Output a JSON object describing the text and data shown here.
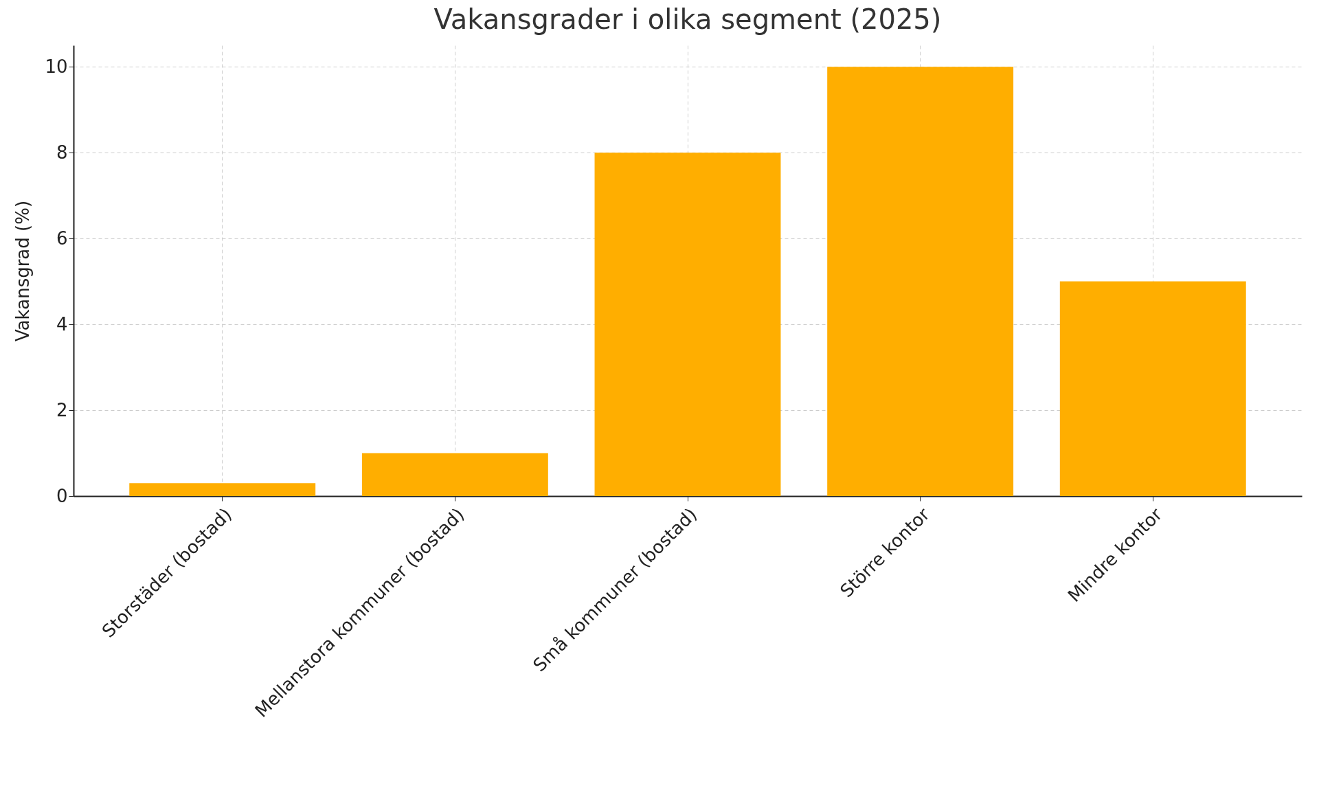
{
  "chart_data": {
    "type": "bar",
    "title": "Vakansgrader i olika segment (2025)",
    "ylabel": "Vakansgrad (%)",
    "categories": [
      "Storstäder (bostad)",
      "Mellanstora kommuner (bostad)",
      "Små kommuner (bostad)",
      "Större kontor",
      "Mindre kontor"
    ],
    "values": [
      0.3,
      1,
      8,
      10,
      5
    ],
    "color": "#ffae00",
    "ylim": [
      0,
      10.5
    ],
    "yticks": [
      0,
      2,
      4,
      6,
      8,
      10
    ],
    "grid": true
  }
}
